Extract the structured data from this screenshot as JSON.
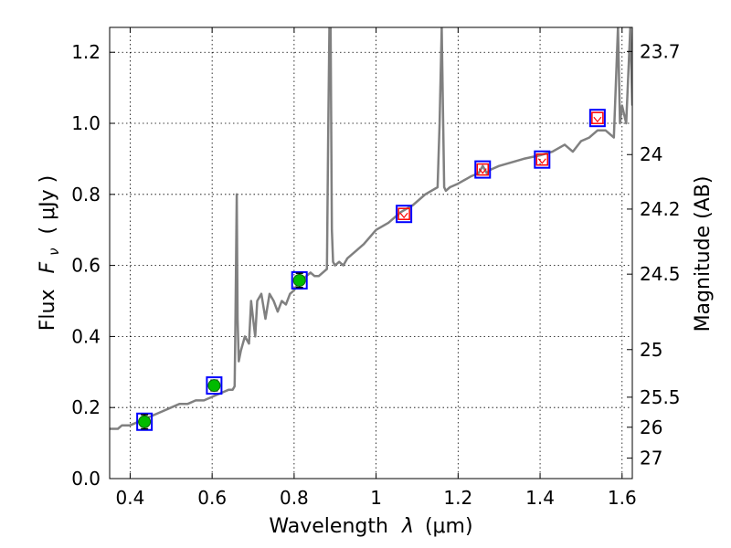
{
  "chart_data": {
    "type": "line",
    "xlabel_prefix": "Wavelength",
    "xlabel_var": "λ",
    "xlabel_unit": "(μm)",
    "ylabel_prefix": "Flux",
    "ylabel_var": "F",
    "ylabel_sub": "ν",
    "ylabel_unit": "( μJy )",
    "y2label": "Magnitude (AB)",
    "xlim": [
      0.35,
      1.625
    ],
    "ylim": [
      0.0,
      1.27
    ],
    "grid": true,
    "x_ticks": [
      {
        "v": 0.4,
        "label": "0.4"
      },
      {
        "v": 0.6,
        "label": "0.6"
      },
      {
        "v": 0.8,
        "label": "0.8"
      },
      {
        "v": 1.0,
        "label": "1"
      },
      {
        "v": 1.2,
        "label": "1.2"
      },
      {
        "v": 1.4,
        "label": "1.4"
      },
      {
        "v": 1.6,
        "label": "1.6"
      }
    ],
    "y_ticks": [
      {
        "v": 0.0,
        "label": "0.0"
      },
      {
        "v": 0.2,
        "label": "0.2"
      },
      {
        "v": 0.4,
        "label": "0.4"
      },
      {
        "v": 0.6,
        "label": "0.6"
      },
      {
        "v": 0.8,
        "label": "0.8"
      },
      {
        "v": 1.0,
        "label": "1.0"
      },
      {
        "v": 1.2,
        "label": "1.2"
      }
    ],
    "y2_ticks": [
      {
        "mag": 23.7,
        "label": "23.7"
      },
      {
        "mag": 24,
        "label": "24"
      },
      {
        "mag": 24.2,
        "label": "24.2"
      },
      {
        "mag": 24.5,
        "label": "24.5"
      },
      {
        "mag": 25,
        "label": "25"
      },
      {
        "mag": 25.5,
        "label": "25.5"
      },
      {
        "mag": 26,
        "label": "26"
      },
      {
        "mag": 27,
        "label": "27"
      }
    ],
    "colors": {
      "model": "#808080",
      "model_box": "#0000ff",
      "observed": "#00bb00",
      "upper_limit": "#ff0000",
      "grid": "#000000"
    },
    "series": [
      {
        "kind": "model_spectrum",
        "x": [
          0.35,
          0.37,
          0.38,
          0.4,
          0.42,
          0.44,
          0.46,
          0.48,
          0.5,
          0.52,
          0.54,
          0.56,
          0.58,
          0.6,
          0.62,
          0.64,
          0.65,
          0.655,
          0.657,
          0.66,
          0.662,
          0.665,
          0.67,
          0.68,
          0.69,
          0.695,
          0.7,
          0.705,
          0.71,
          0.72,
          0.73,
          0.74,
          0.75,
          0.76,
          0.77,
          0.78,
          0.79,
          0.8,
          0.81,
          0.82,
          0.83,
          0.84,
          0.85,
          0.86,
          0.87,
          0.88,
          0.883,
          0.886,
          0.889,
          0.892,
          0.895,
          0.9,
          0.91,
          0.92,
          0.93,
          0.95,
          0.97,
          1.0,
          1.03,
          1.06,
          1.09,
          1.12,
          1.15,
          1.155,
          1.16,
          1.163,
          1.166,
          1.17,
          1.18,
          1.2,
          1.23,
          1.25,
          1.26,
          1.27,
          1.28,
          1.3,
          1.33,
          1.36,
          1.4,
          1.43,
          1.46,
          1.48,
          1.5,
          1.52,
          1.54,
          1.56,
          1.58,
          1.59,
          1.595,
          1.6,
          1.61,
          1.62,
          1.625
        ],
        "y": [
          0.14,
          0.14,
          0.15,
          0.15,
          0.16,
          0.17,
          0.18,
          0.19,
          0.2,
          0.21,
          0.21,
          0.22,
          0.22,
          0.23,
          0.24,
          0.25,
          0.25,
          0.26,
          0.45,
          0.8,
          0.45,
          0.33,
          0.36,
          0.4,
          0.38,
          0.5,
          0.45,
          0.4,
          0.5,
          0.52,
          0.45,
          0.52,
          0.5,
          0.47,
          0.5,
          0.49,
          0.52,
          0.53,
          0.55,
          0.56,
          0.57,
          0.58,
          0.57,
          0.57,
          0.58,
          0.59,
          0.95,
          1.27,
          1.27,
          0.7,
          0.61,
          0.6,
          0.61,
          0.6,
          0.62,
          0.64,
          0.66,
          0.7,
          0.72,
          0.75,
          0.77,
          0.8,
          0.82,
          1.0,
          1.27,
          1.05,
          0.82,
          0.81,
          0.82,
          0.83,
          0.85,
          0.86,
          0.88,
          0.86,
          0.87,
          0.88,
          0.89,
          0.9,
          0.91,
          0.92,
          0.94,
          0.92,
          0.95,
          0.96,
          0.98,
          0.98,
          0.96,
          1.27,
          1.0,
          1.05,
          1.0,
          1.27,
          1.05
        ]
      },
      {
        "kind": "model_bandpass",
        "name": "model",
        "points": [
          {
            "x": 0.435,
            "y": 0.16
          },
          {
            "x": 0.605,
            "y": 0.262
          },
          {
            "x": 0.813,
            "y": 0.558
          },
          {
            "x": 1.068,
            "y": 0.745
          },
          {
            "x": 1.26,
            "y": 0.87
          },
          {
            "x": 1.405,
            "y": 0.898
          },
          {
            "x": 1.54,
            "y": 1.015
          }
        ]
      },
      {
        "kind": "observed",
        "points": [
          {
            "x": 0.435,
            "y": 0.16,
            "err": 0.02
          },
          {
            "x": 0.605,
            "y": 0.262,
            "err": 0.015
          },
          {
            "x": 0.813,
            "y": 0.558,
            "err": 0.02
          }
        ]
      },
      {
        "kind": "upper_limit",
        "points": [
          {
            "x": 1.068,
            "y": 0.745
          },
          {
            "x": 1.26,
            "y": 0.87
          },
          {
            "x": 1.405,
            "y": 0.898
          },
          {
            "x": 1.54,
            "y": 1.015
          }
        ]
      }
    ]
  }
}
